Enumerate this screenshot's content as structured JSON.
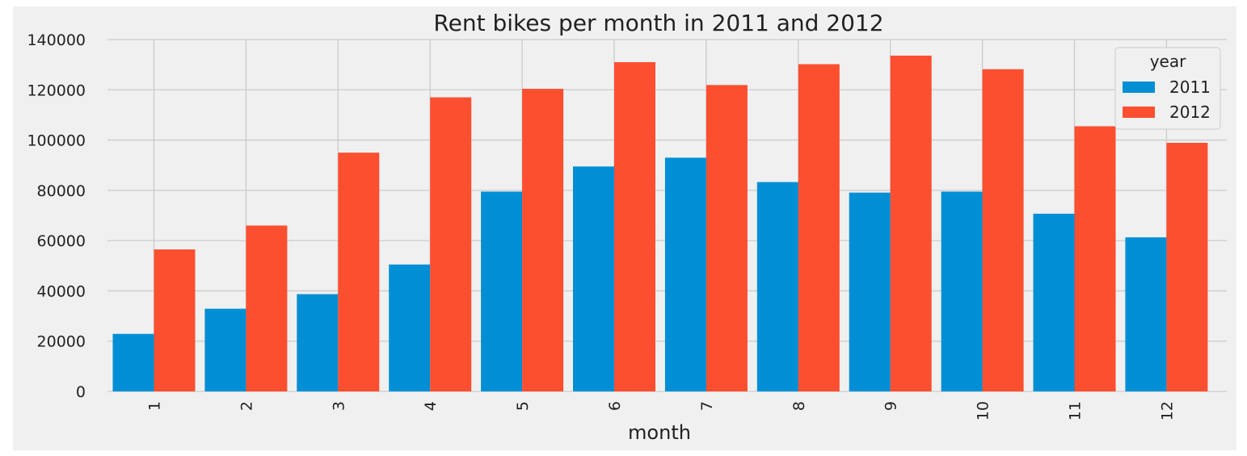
{
  "chart_data": {
    "type": "bar",
    "title": "Rent bikes per month in 2011 and 2012",
    "xlabel": "month",
    "ylabel": "",
    "categories": [
      "1",
      "2",
      "3",
      "4",
      "5",
      "6",
      "7",
      "8",
      "9",
      "10",
      "11",
      "12"
    ],
    "series": [
      {
        "name": "2011",
        "color": "#008fd5",
        "values": [
          22900,
          32900,
          38700,
          50500,
          79500,
          89500,
          93000,
          83300,
          79100,
          79500,
          70700,
          61300
        ]
      },
      {
        "name": "2012",
        "color": "#fc4f30",
        "values": [
          56500,
          66000,
          95000,
          117000,
          120400,
          131000,
          121900,
          130200,
          133600,
          128200,
          105500,
          98900
        ]
      }
    ],
    "ylim": [
      0,
      140000
    ],
    "yticks": [
      0,
      20000,
      40000,
      60000,
      80000,
      100000,
      120000,
      140000
    ],
    "grid": true,
    "legend": {
      "title": "year",
      "position": "top-right"
    },
    "colors": {
      "background": "#f0f0f0",
      "grid": "#cbcbcb"
    }
  }
}
